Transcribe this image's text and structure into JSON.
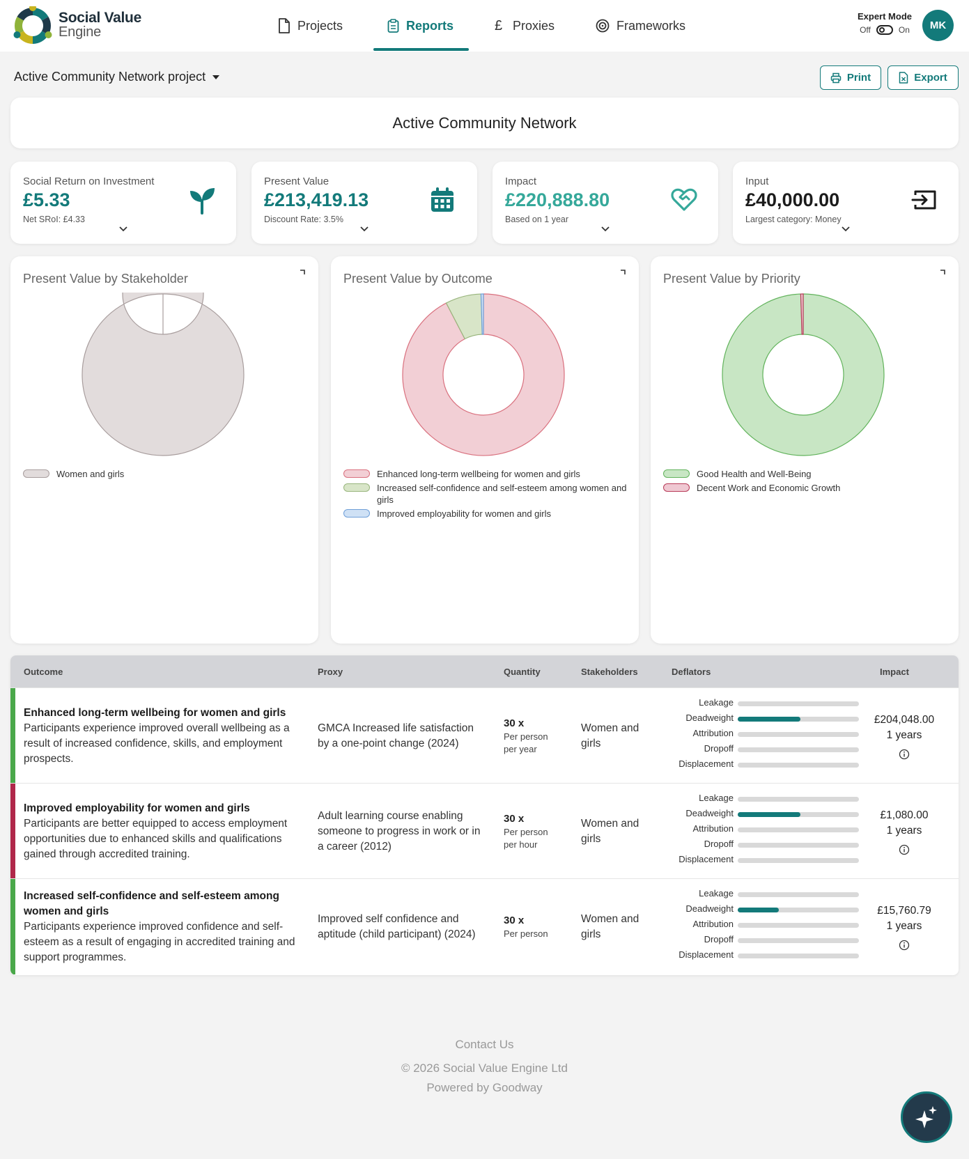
{
  "header": {
    "logo_line1": "Social Value",
    "logo_line2": "Engine",
    "nav": [
      {
        "label": "Projects",
        "icon": "document-icon"
      },
      {
        "label": "Reports",
        "icon": "clipboard-icon",
        "active": true
      },
      {
        "label": "Proxies",
        "icon": "pound-icon"
      },
      {
        "label": "Frameworks",
        "icon": "target-icon"
      }
    ],
    "expert_mode": {
      "title": "Expert Mode",
      "off": "Off",
      "on": "On"
    },
    "avatar": "MK",
    "accent_color": "#137a7a"
  },
  "project_bar": {
    "selected_project": "Active Community Network project",
    "print_label": "Print",
    "export_label": "Export"
  },
  "report_title": "Active Community Network",
  "kpis": [
    {
      "label": "Social Return on Investment",
      "value": "£5.33",
      "sub": "Net SRoI: £4.33",
      "icon": "sprout-icon"
    },
    {
      "label": "Present Value",
      "value": "£213,419.13",
      "sub": "Discount Rate: 3.5%",
      "icon": "calendar-icon"
    },
    {
      "label": "Impact",
      "value": "£220,888.80",
      "sub": "Based on 1 year",
      "icon": "heart-handshake-icon"
    },
    {
      "label": "Input",
      "value": "£40,000.00",
      "sub": "Largest category: Money",
      "icon": "input-arrow-icon"
    }
  ],
  "charts": [
    {
      "title": "Present Value by Stakeholder",
      "type": "donut",
      "legend": [
        {
          "label": "Women and girls",
          "fill": "#e2dcdc",
          "stroke": "#a89d9d"
        }
      ]
    },
    {
      "title": "Present Value by Outcome",
      "type": "donut",
      "legend": [
        {
          "label": "Enhanced long-term wellbeing for women and girls",
          "fill": "#f2cfd5",
          "stroke": "#d9707e"
        },
        {
          "label": "Increased self-confidence and self-esteem among women and girls",
          "fill": "#d8e5c8",
          "stroke": "#98b57c"
        },
        {
          "label": "Improved employability for women and girls",
          "fill": "#cfe1f5",
          "stroke": "#6f9fd8"
        }
      ]
    },
    {
      "title": "Present Value by Priority",
      "type": "donut",
      "legend": [
        {
          "label": "Good Health and Well-Being",
          "fill": "#c8e6c4",
          "stroke": "#62b35c"
        },
        {
          "label": "Decent Work and Economic Growth",
          "fill": "#efc8d2",
          "stroke": "#b83a58"
        }
      ]
    }
  ],
  "chart_data": [
    {
      "type": "pie",
      "title": "Present Value by Stakeholder",
      "categories": [
        "Women and girls"
      ],
      "values": [
        213419.13
      ]
    },
    {
      "type": "pie",
      "title": "Present Value by Outcome",
      "categories": [
        "Enhanced long-term wellbeing for women and girls",
        "Increased self-confidence and self-esteem among women and girls",
        "Improved employability for women and girls"
      ],
      "values": [
        197151.12,
        15228.54,
        1039.47
      ]
    },
    {
      "type": "pie",
      "title": "Present Value by Priority",
      "categories": [
        "Good Health and Well-Being",
        "Decent Work and Economic Growth"
      ],
      "values": [
        212379.66,
        1039.47
      ]
    }
  ],
  "table": {
    "headers": [
      "Outcome",
      "Proxy",
      "Quantity",
      "Stakeholders",
      "Deflators",
      "Impact"
    ],
    "deflator_labels": [
      "Leakage",
      "Deadweight",
      "Attribution",
      "Dropoff",
      "Displacement"
    ],
    "rows": [
      {
        "accent": "#4aa84a",
        "title": "Enhanced long-term wellbeing for women and girls",
        "desc": "Participants experience improved overall wellbeing as a result of increased confidence, skills, and employment prospects.",
        "proxy": "GMCA Increased life satisfaction by a one-point change (2024)",
        "quantity": "30 x",
        "qty_line1": "Per person",
        "qty_line2": "per year",
        "stakeholders": "Women and girls",
        "deflators": [
          0,
          0.52,
          0,
          0,
          0
        ],
        "impact": "£204,048.00",
        "years": "1 years"
      },
      {
        "accent": "#b0284a",
        "title": "Improved employability for women and girls",
        "desc": "Participants are better equipped to access employment opportunities due to enhanced skills and qualifications gained through accredited training.",
        "proxy": "Adult learning course enabling someone to progress in work or in a career (2012)",
        "quantity": "30 x",
        "qty_line1": "Per person",
        "qty_line2": "per hour",
        "stakeholders": "Women and girls",
        "deflators": [
          0,
          0.52,
          0,
          0,
          0
        ],
        "impact": "£1,080.00",
        "years": "1 years"
      },
      {
        "accent": "#4aa84a",
        "title": "Increased self-confidence and self-esteem among women and girls",
        "desc": "Participants experience improved confidence and self-esteem as a result of engaging in accredited training and support programmes.",
        "proxy": "Improved self confidence and aptitude (child participant) (2024)",
        "quantity": "30 x",
        "qty_line1": "Per person",
        "qty_line2": "",
        "stakeholders": "Women and girls",
        "deflators": [
          0,
          0.34,
          0,
          0,
          0
        ],
        "impact": "£15,760.79",
        "years": "1 years"
      }
    ]
  },
  "footer": {
    "contact": "Contact Us",
    "copyright": "© 2026 Social Value Engine Ltd",
    "powered": "Powered by Goodway"
  }
}
